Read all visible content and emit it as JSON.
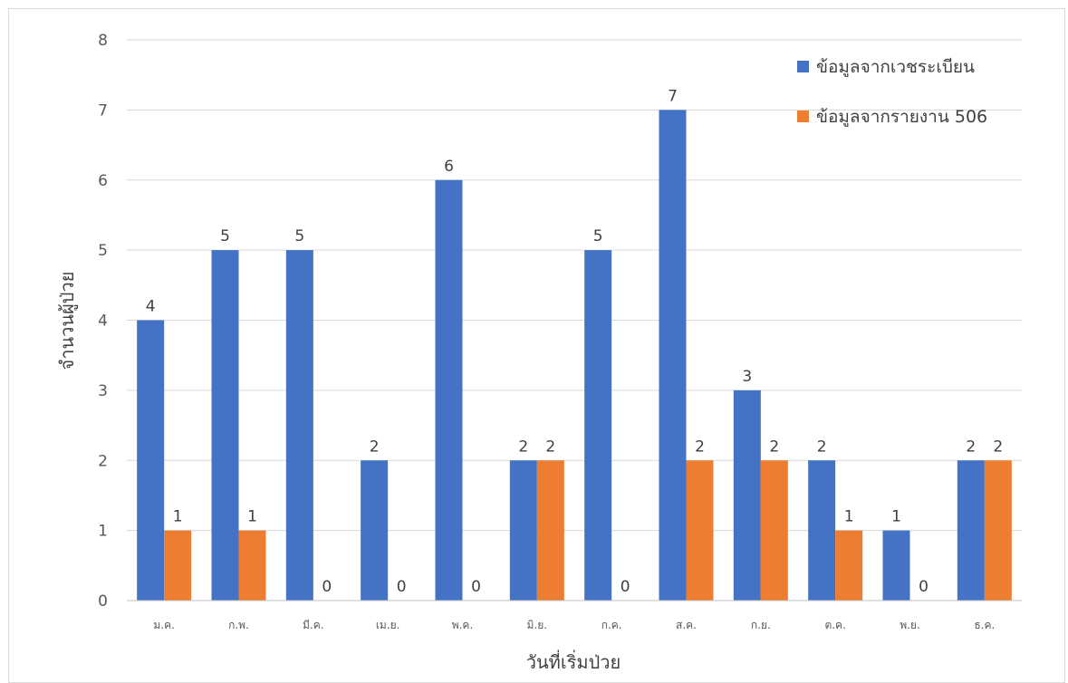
{
  "chart_data": {
    "type": "bar",
    "title": "",
    "xlabel": "วันที่เริ่มป่วย",
    "ylabel": "จำนวนผู้ป่วย",
    "ylim": [
      0,
      8
    ],
    "yticks": [
      0,
      1,
      2,
      3,
      4,
      5,
      6,
      7,
      8
    ],
    "grid": true,
    "legend_position": "top-right",
    "categories": [
      "ม.ค.",
      "ก.พ.",
      "มี.ค.",
      "เม.ย.",
      "พ.ค.",
      "มิ.ย.",
      "ก.ค.",
      "ส.ค.",
      "ก.ย.",
      "ต.ค.",
      "พ.ย.",
      "ธ.ค."
    ],
    "series": [
      {
        "name": "ข้อมูลจากเวชระเบียน",
        "color": "#4472c4",
        "values": [
          4,
          5,
          5,
          2,
          6,
          2,
          5,
          7,
          3,
          2,
          1,
          2
        ]
      },
      {
        "name": "ข้อมูลจากรายงาน 506",
        "color": "#ed7d31",
        "values": [
          1,
          1,
          0,
          0,
          0,
          2,
          0,
          2,
          2,
          1,
          0,
          2
        ]
      }
    ],
    "data_labels": true
  }
}
